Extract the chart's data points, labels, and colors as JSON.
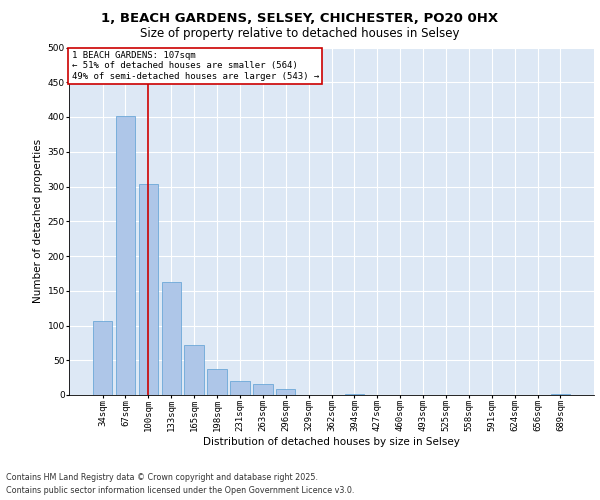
{
  "title_line1": "1, BEACH GARDENS, SELSEY, CHICHESTER, PO20 0HX",
  "title_line2": "Size of property relative to detached houses in Selsey",
  "xlabel": "Distribution of detached houses by size in Selsey",
  "ylabel": "Number of detached properties",
  "categories": [
    "34sqm",
    "67sqm",
    "100sqm",
    "133sqm",
    "165sqm",
    "198sqm",
    "231sqm",
    "263sqm",
    "296sqm",
    "329sqm",
    "362sqm",
    "394sqm",
    "427sqm",
    "460sqm",
    "493sqm",
    "525sqm",
    "558sqm",
    "591sqm",
    "624sqm",
    "656sqm",
    "689sqm"
  ],
  "values": [
    107,
    401,
    304,
    163,
    72,
    37,
    20,
    16,
    8,
    0,
    0,
    1,
    0,
    0,
    0,
    0,
    0,
    0,
    0,
    0,
    1
  ],
  "bar_color": "#aec6e8",
  "bar_edgecolor": "#5a9ed4",
  "vline_x_index": 2,
  "vline_color": "#cc0000",
  "annotation_text": "1 BEACH GARDENS: 107sqm\n← 51% of detached houses are smaller (564)\n49% of semi-detached houses are larger (543) →",
  "annotation_box_color": "#ffffff",
  "annotation_box_edgecolor": "#cc0000",
  "ylim": [
    0,
    500
  ],
  "yticks": [
    0,
    50,
    100,
    150,
    200,
    250,
    300,
    350,
    400,
    450,
    500
  ],
  "background_color": "#dde8f5",
  "grid_color": "#ffffff",
  "footer_line1": "Contains HM Land Registry data © Crown copyright and database right 2025.",
  "footer_line2": "Contains public sector information licensed under the Open Government Licence v3.0.",
  "title_fontsize": 9.5,
  "subtitle_fontsize": 8.5,
  "annotation_fontsize": 6.5,
  "axis_label_fontsize": 7.5,
  "tick_fontsize": 6.5,
  "footer_fontsize": 5.8
}
